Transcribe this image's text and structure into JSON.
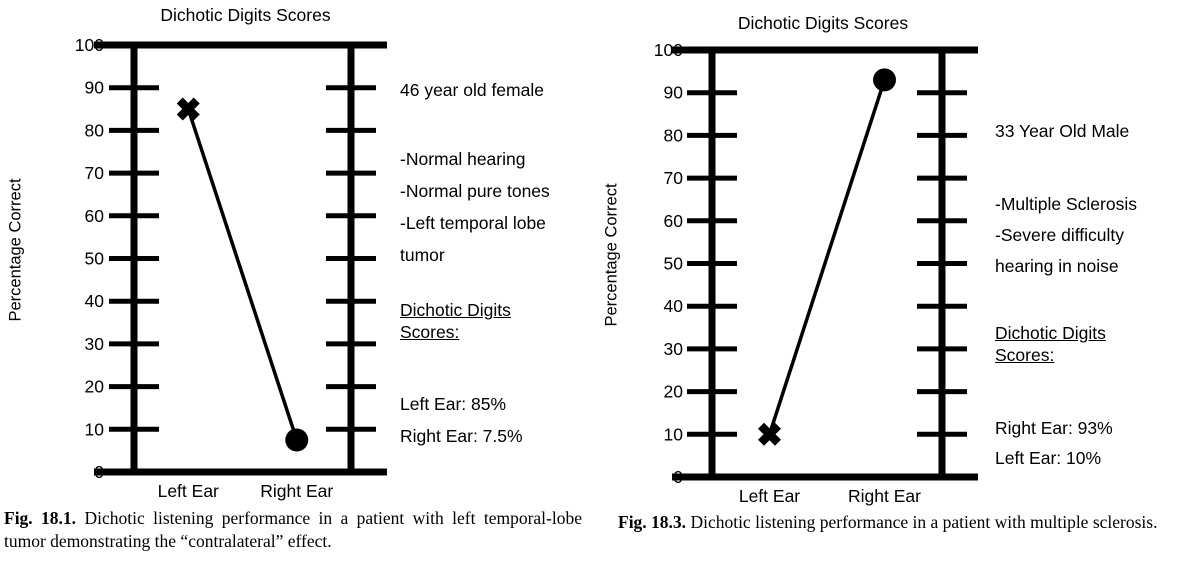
{
  "figures": [
    {
      "annotations": {
        "patient": "46 year old female",
        "details": [
          "-Normal hearing",
          "-Normal pure tones",
          "-Left temporal lobe",
          "tumor"
        ],
        "scores_heading": [
          "Dichotic Digits",
          "Scores:"
        ],
        "scores": [
          "Left Ear: 85%",
          "Right Ear: 7.5%"
        ]
      },
      "caption_label": "Fig. 18.1.",
      "caption_text": "Dichotic listening performance in a patient with left temporal-lobe tumor demonstrating the “contralateral” effect."
    },
    {
      "annotations": {
        "patient": "33 Year Old Male",
        "details": [
          "-Multiple Sclerosis",
          "-Severe difficulty",
          "hearing in noise"
        ],
        "scores_heading": [
          "Dichotic Digits",
          "Scores:"
        ],
        "scores": [
          "Right Ear: 93%",
          "Left Ear: 10%"
        ]
      },
      "caption_label": "Fig. 18.3.",
      "caption_text": "Dichotic listening performance in a patient with multiple sclerosis."
    }
  ],
  "chart_data": [
    {
      "type": "line",
      "title": "Dichotic Digits Scores",
      "xlabel": "",
      "ylabel": "Percentage Correct",
      "categories": [
        "Left Ear",
        "Right Ear"
      ],
      "series": [
        {
          "name": "Dichotic digits score",
          "values": [
            85,
            7.5
          ],
          "markers": [
            "x",
            "circle"
          ]
        }
      ],
      "ylim": [
        0,
        100
      ],
      "yticks": [
        0,
        10,
        20,
        30,
        40,
        50,
        60,
        70,
        80,
        90,
        100
      ],
      "grid": false,
      "legend": "none",
      "colors": {
        "line": "#000000",
        "marker": "#000000",
        "axis": "#000000"
      }
    },
    {
      "type": "line",
      "title": "Dichotic Digits Scores",
      "xlabel": "",
      "ylabel": "Percentage Correct",
      "categories": [
        "Left Ear",
        "Right Ear"
      ],
      "series": [
        {
          "name": "Dichotic digits score",
          "values": [
            10,
            93
          ],
          "markers": [
            "x",
            "circle"
          ]
        }
      ],
      "ylim": [
        0,
        100
      ],
      "yticks": [
        0,
        10,
        20,
        30,
        40,
        50,
        60,
        70,
        80,
        90,
        100
      ],
      "grid": false,
      "legend": "none",
      "colors": {
        "line": "#000000",
        "marker": "#000000",
        "axis": "#000000"
      }
    }
  ]
}
